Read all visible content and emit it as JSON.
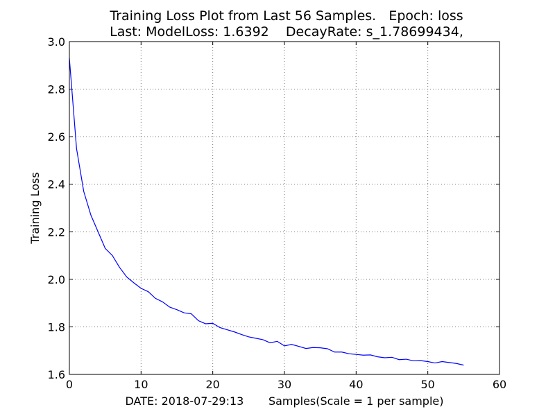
{
  "chart_data": {
    "type": "line",
    "title_line1": "Training Loss Plot from Last 56 Samples.   Epoch: loss",
    "title_line2": "Last: ModelLoss: 1.6392    DecayRate: s_1.78699434,",
    "xlabel": "DATE: 2018-07-29:13       Samples(Scale = 1 per sample)",
    "ylabel": "Training Loss",
    "xlim": [
      0,
      60
    ],
    "ylim": [
      1.6,
      3.0
    ],
    "xticks": [
      0,
      10,
      20,
      30,
      40,
      50,
      60
    ],
    "xtick_labels": [
      "0",
      "10",
      "20",
      "30",
      "40",
      "50",
      "60"
    ],
    "yticks": [
      1.6,
      1.8,
      2.0,
      2.2,
      2.4,
      2.6,
      2.8,
      3.0
    ],
    "ytick_labels": [
      "1.6",
      "1.8",
      "2.0",
      "2.2",
      "2.4",
      "2.6",
      "2.8",
      "3.0"
    ],
    "grid": true,
    "line_color": "#0000ff",
    "series": [
      {
        "x": [
          0,
          1,
          2,
          3,
          4,
          5,
          6,
          7,
          8,
          9,
          10,
          11,
          12,
          13,
          14,
          15,
          16,
          17,
          18,
          19,
          20,
          21,
          22,
          23,
          24,
          25,
          26,
          27,
          28,
          29,
          30,
          31,
          32,
          33,
          34,
          35,
          36,
          37,
          38,
          39,
          40,
          41,
          42,
          43,
          44,
          45,
          46,
          47,
          48,
          49,
          50,
          51,
          52,
          53,
          54,
          55
        ],
        "values": [
          2.93,
          2.55,
          2.37,
          2.27,
          2.2,
          2.13,
          2.1,
          2.05,
          2.01,
          1.985,
          1.962,
          1.948,
          1.92,
          1.905,
          1.883,
          1.872,
          1.859,
          1.855,
          1.826,
          1.813,
          1.815,
          1.797,
          1.788,
          1.779,
          1.768,
          1.758,
          1.752,
          1.746,
          1.733,
          1.739,
          1.72,
          1.726,
          1.718,
          1.709,
          1.713,
          1.712,
          1.708,
          1.694,
          1.694,
          1.687,
          1.684,
          1.681,
          1.682,
          1.674,
          1.67,
          1.672,
          1.662,
          1.664,
          1.657,
          1.658,
          1.654,
          1.648,
          1.654,
          1.65,
          1.646,
          1.639
        ]
      }
    ]
  }
}
